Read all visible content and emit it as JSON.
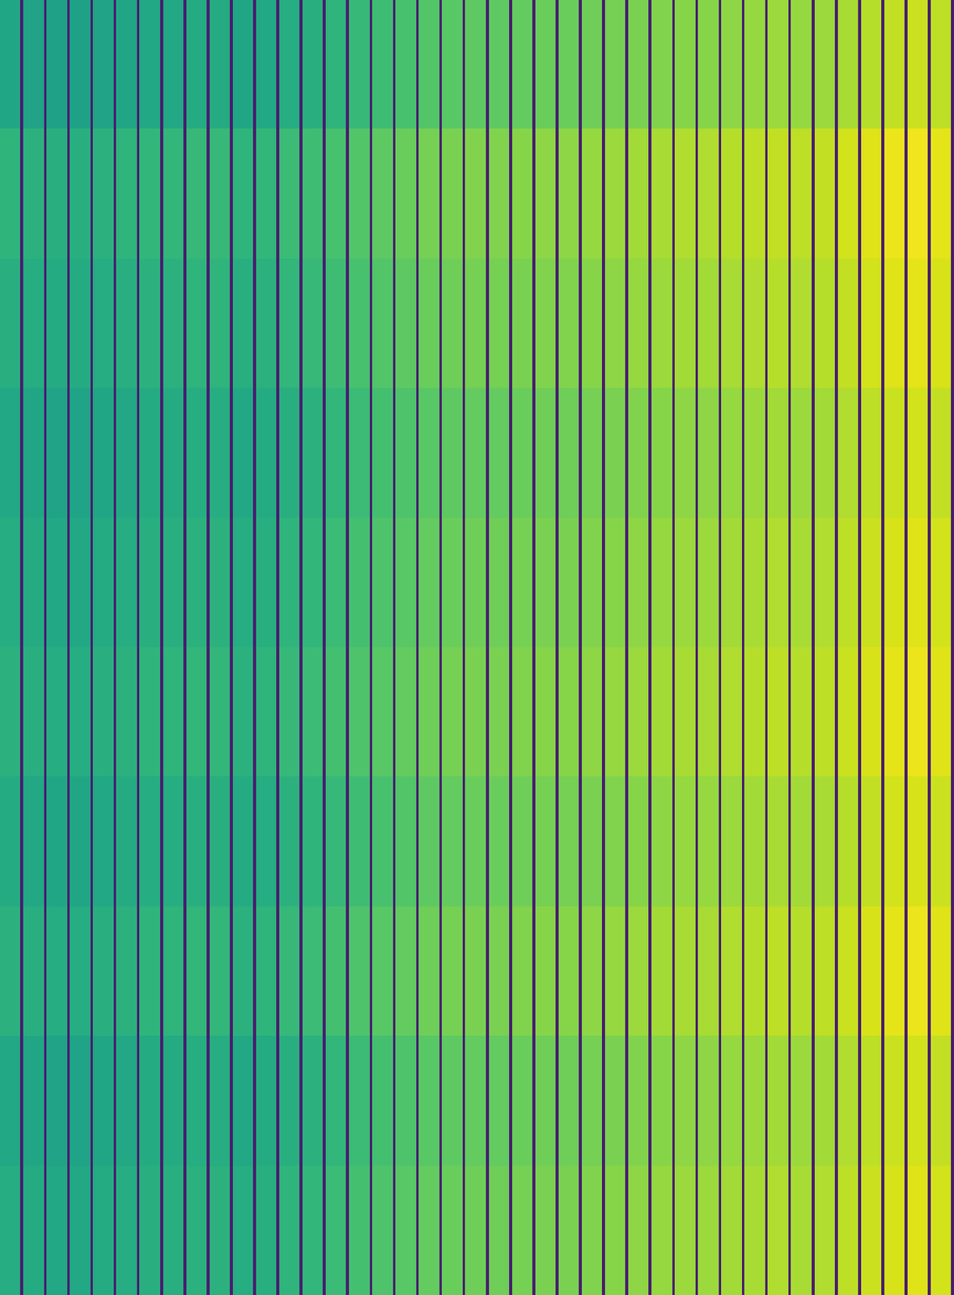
{
  "chart_data": {
    "type": "heatmap",
    "color": "viridis",
    "color_range": [
      0,
      1
    ],
    "tick_labels": false,
    "cells": [
      [
        0.59,
        0.08,
        0.58,
        0.08,
        0.57,
        0.08,
        0.57,
        0.08,
        0.58,
        0.08,
        0.59,
        0.08,
        0.6,
        0.08,
        0.6,
        0.08,
        0.61,
        0.08,
        0.61,
        0.08,
        0.59,
        0.08,
        0.6,
        0.08,
        0.62,
        0.08,
        0.63,
        0.08,
        0.65,
        0.08,
        0.67,
        0.08,
        0.69,
        0.08,
        0.71,
        0.08,
        0.73,
        0.08,
        0.74,
        0.08,
        0.75,
        0.08,
        0.75,
        0.08,
        0.76,
        0.08,
        0.77,
        0.08,
        0.77,
        0.08,
        0.78,
        0.08,
        0.79,
        0.08,
        0.8,
        0.08,
        0.81,
        0.08,
        0.82,
        0.08,
        0.82,
        0.08,
        0.83,
        0.08,
        0.84,
        0.08,
        0.85,
        0.08,
        0.84,
        0.08,
        0.85,
        0.08,
        0.87,
        0.08,
        0.89,
        0.08,
        0.91,
        0.08,
        0.92,
        0.08,
        0.9,
        0.08
      ],
      [
        0.65,
        0.08,
        0.64,
        0.08,
        0.63,
        0.08,
        0.63,
        0.08,
        0.64,
        0.08,
        0.65,
        0.08,
        0.66,
        0.08,
        0.66,
        0.08,
        0.67,
        0.08,
        0.67,
        0.08,
        0.65,
        0.08,
        0.66,
        0.08,
        0.68,
        0.08,
        0.69,
        0.08,
        0.71,
        0.08,
        0.73,
        0.08,
        0.75,
        0.08,
        0.77,
        0.08,
        0.79,
        0.08,
        0.8,
        0.08,
        0.81,
        0.08,
        0.81,
        0.08,
        0.82,
        0.08,
        0.83,
        0.08,
        0.83,
        0.08,
        0.84,
        0.08,
        0.85,
        0.08,
        0.86,
        0.08,
        0.87,
        0.08,
        0.88,
        0.08,
        0.88,
        0.08,
        0.89,
        0.08,
        0.9,
        0.08,
        0.91,
        0.08,
        0.9,
        0.08,
        0.91,
        0.08,
        0.93,
        0.08,
        0.95,
        0.08,
        0.97,
        0.08,
        0.98,
        0.08,
        0.96,
        0.08
      ],
      [
        0.63,
        0.08,
        0.62,
        0.08,
        0.61,
        0.08,
        0.61,
        0.08,
        0.62,
        0.08,
        0.63,
        0.08,
        0.64,
        0.08,
        0.64,
        0.08,
        0.65,
        0.08,
        0.65,
        0.08,
        0.63,
        0.08,
        0.64,
        0.08,
        0.66,
        0.08,
        0.67,
        0.08,
        0.69,
        0.08,
        0.71,
        0.08,
        0.73,
        0.08,
        0.75,
        0.08,
        0.77,
        0.08,
        0.78,
        0.08,
        0.79,
        0.08,
        0.79,
        0.08,
        0.8,
        0.08,
        0.81,
        0.08,
        0.81,
        0.08,
        0.82,
        0.08,
        0.83,
        0.08,
        0.84,
        0.08,
        0.85,
        0.08,
        0.86,
        0.08,
        0.86,
        0.08,
        0.87,
        0.08,
        0.88,
        0.08,
        0.89,
        0.08,
        0.88,
        0.08,
        0.89,
        0.08,
        0.91,
        0.08,
        0.93,
        0.08,
        0.95,
        0.08,
        0.96,
        0.08,
        0.94,
        0.08
      ],
      [
        0.6,
        0.08,
        0.59,
        0.08,
        0.58,
        0.08,
        0.58,
        0.08,
        0.59,
        0.08,
        0.6,
        0.08,
        0.61,
        0.08,
        0.61,
        0.08,
        0.62,
        0.08,
        0.62,
        0.08,
        0.6,
        0.08,
        0.61,
        0.08,
        0.63,
        0.08,
        0.64,
        0.08,
        0.66,
        0.08,
        0.68,
        0.08,
        0.7,
        0.08,
        0.72,
        0.08,
        0.74,
        0.08,
        0.75,
        0.08,
        0.76,
        0.08,
        0.76,
        0.08,
        0.77,
        0.08,
        0.78,
        0.08,
        0.78,
        0.08,
        0.79,
        0.08,
        0.8,
        0.08,
        0.81,
        0.08,
        0.82,
        0.08,
        0.83,
        0.08,
        0.83,
        0.08,
        0.84,
        0.08,
        0.85,
        0.08,
        0.86,
        0.08,
        0.85,
        0.08,
        0.86,
        0.08,
        0.88,
        0.08,
        0.9,
        0.08,
        0.92,
        0.08,
        0.93,
        0.08,
        0.91,
        0.08
      ],
      [
        0.62,
        0.08,
        0.61,
        0.08,
        0.6,
        0.08,
        0.6,
        0.08,
        0.61,
        0.08,
        0.62,
        0.08,
        0.63,
        0.08,
        0.63,
        0.08,
        0.64,
        0.08,
        0.64,
        0.08,
        0.62,
        0.08,
        0.63,
        0.08,
        0.65,
        0.08,
        0.66,
        0.08,
        0.68,
        0.08,
        0.7,
        0.08,
        0.72,
        0.08,
        0.74,
        0.08,
        0.76,
        0.08,
        0.77,
        0.08,
        0.78,
        0.08,
        0.78,
        0.08,
        0.79,
        0.08,
        0.8,
        0.08,
        0.8,
        0.08,
        0.81,
        0.08,
        0.82,
        0.08,
        0.83,
        0.08,
        0.84,
        0.08,
        0.85,
        0.08,
        0.85,
        0.08,
        0.86,
        0.08,
        0.87,
        0.08,
        0.88,
        0.08,
        0.87,
        0.08,
        0.88,
        0.08,
        0.9,
        0.08,
        0.92,
        0.08,
        0.94,
        0.08,
        0.95,
        0.08,
        0.93,
        0.08
      ],
      [
        0.64,
        0.08,
        0.63,
        0.08,
        0.62,
        0.08,
        0.62,
        0.08,
        0.63,
        0.08,
        0.64,
        0.08,
        0.65,
        0.08,
        0.65,
        0.08,
        0.66,
        0.08,
        0.66,
        0.08,
        0.64,
        0.08,
        0.65,
        0.08,
        0.67,
        0.08,
        0.68,
        0.08,
        0.7,
        0.08,
        0.72,
        0.08,
        0.74,
        0.08,
        0.76,
        0.08,
        0.78,
        0.08,
        0.79,
        0.08,
        0.8,
        0.08,
        0.8,
        0.08,
        0.81,
        0.08,
        0.82,
        0.08,
        0.82,
        0.08,
        0.83,
        0.08,
        0.84,
        0.08,
        0.85,
        0.08,
        0.86,
        0.08,
        0.87,
        0.08,
        0.87,
        0.08,
        0.88,
        0.08,
        0.89,
        0.08,
        0.9,
        0.08,
        0.89,
        0.08,
        0.9,
        0.08,
        0.92,
        0.08,
        0.94,
        0.08,
        0.96,
        0.08,
        0.97,
        0.08,
        0.95,
        0.08
      ],
      [
        0.61,
        0.08,
        0.6,
        0.08,
        0.59,
        0.08,
        0.59,
        0.08,
        0.6,
        0.08,
        0.61,
        0.08,
        0.62,
        0.08,
        0.62,
        0.08,
        0.63,
        0.08,
        0.63,
        0.08,
        0.61,
        0.08,
        0.62,
        0.08,
        0.64,
        0.08,
        0.65,
        0.08,
        0.67,
        0.08,
        0.69,
        0.08,
        0.71,
        0.08,
        0.73,
        0.08,
        0.75,
        0.08,
        0.76,
        0.08,
        0.77,
        0.08,
        0.77,
        0.08,
        0.78,
        0.08,
        0.79,
        0.08,
        0.79,
        0.08,
        0.8,
        0.08,
        0.81,
        0.08,
        0.82,
        0.08,
        0.83,
        0.08,
        0.84,
        0.08,
        0.84,
        0.08,
        0.85,
        0.08,
        0.86,
        0.08,
        0.87,
        0.08,
        0.86,
        0.08,
        0.87,
        0.08,
        0.89,
        0.08,
        0.91,
        0.08,
        0.93,
        0.08,
        0.94,
        0.08,
        0.92,
        0.08
      ],
      [
        0.64,
        0.08,
        0.63,
        0.08,
        0.62,
        0.08,
        0.62,
        0.08,
        0.63,
        0.08,
        0.64,
        0.08,
        0.65,
        0.08,
        0.65,
        0.08,
        0.66,
        0.08,
        0.66,
        0.08,
        0.64,
        0.08,
        0.65,
        0.08,
        0.67,
        0.08,
        0.68,
        0.08,
        0.7,
        0.08,
        0.72,
        0.08,
        0.74,
        0.08,
        0.76,
        0.08,
        0.78,
        0.08,
        0.79,
        0.08,
        0.8,
        0.08,
        0.8,
        0.08,
        0.81,
        0.08,
        0.82,
        0.08,
        0.82,
        0.08,
        0.83,
        0.08,
        0.84,
        0.08,
        0.85,
        0.08,
        0.86,
        0.08,
        0.87,
        0.08,
        0.87,
        0.08,
        0.88,
        0.08,
        0.89,
        0.08,
        0.9,
        0.08,
        0.89,
        0.08,
        0.9,
        0.08,
        0.92,
        0.08,
        0.94,
        0.08,
        0.96,
        0.08,
        0.97,
        0.08,
        0.95,
        0.08
      ],
      [
        0.6,
        0.08,
        0.59,
        0.08,
        0.58,
        0.08,
        0.58,
        0.08,
        0.59,
        0.08,
        0.6,
        0.08,
        0.61,
        0.08,
        0.61,
        0.08,
        0.62,
        0.08,
        0.62,
        0.08,
        0.6,
        0.08,
        0.61,
        0.08,
        0.63,
        0.08,
        0.64,
        0.08,
        0.66,
        0.08,
        0.68,
        0.08,
        0.7,
        0.08,
        0.72,
        0.08,
        0.74,
        0.08,
        0.75,
        0.08,
        0.76,
        0.08,
        0.76,
        0.08,
        0.77,
        0.08,
        0.78,
        0.08,
        0.78,
        0.08,
        0.79,
        0.08,
        0.8,
        0.08,
        0.81,
        0.08,
        0.82,
        0.08,
        0.83,
        0.08,
        0.83,
        0.08,
        0.84,
        0.08,
        0.85,
        0.08,
        0.86,
        0.08,
        0.85,
        0.08,
        0.86,
        0.08,
        0.88,
        0.08,
        0.9,
        0.08,
        0.92,
        0.08,
        0.93,
        0.08,
        0.91,
        0.08
      ],
      [
        0.62,
        0.08,
        0.61,
        0.08,
        0.6,
        0.08,
        0.6,
        0.08,
        0.61,
        0.08,
        0.62,
        0.08,
        0.63,
        0.08,
        0.63,
        0.08,
        0.64,
        0.08,
        0.64,
        0.08,
        0.62,
        0.08,
        0.63,
        0.08,
        0.65,
        0.08,
        0.66,
        0.08,
        0.68,
        0.08,
        0.7,
        0.08,
        0.72,
        0.08,
        0.74,
        0.08,
        0.76,
        0.08,
        0.77,
        0.08,
        0.78,
        0.08,
        0.78,
        0.08,
        0.79,
        0.08,
        0.8,
        0.08,
        0.8,
        0.08,
        0.81,
        0.08,
        0.82,
        0.08,
        0.83,
        0.08,
        0.84,
        0.08,
        0.85,
        0.08,
        0.85,
        0.08,
        0.86,
        0.08,
        0.87,
        0.08,
        0.88,
        0.08,
        0.87,
        0.08,
        0.88,
        0.08,
        0.9,
        0.08,
        0.92,
        0.08,
        0.94,
        0.08,
        0.95,
        0.08,
        0.93,
        0.08
      ]
    ]
  }
}
